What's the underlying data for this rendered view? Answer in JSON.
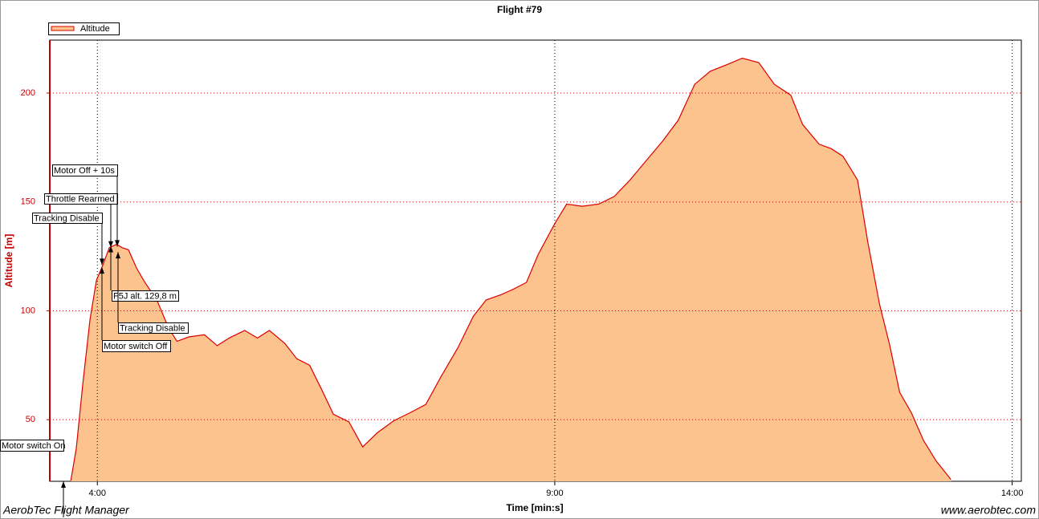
{
  "chart_data": {
    "type": "area",
    "title": "Flight #79",
    "x_label": "Time [min:s]",
    "y_label": "Altitude [m]",
    "footer_left": "AerobTec Flight Manager",
    "footer_right": "www.aerobtec.com",
    "xlim": [
      3.48,
      14.1
    ],
    "ylim": [
      21.7,
      224.3
    ],
    "xticks": [
      {
        "value": 4,
        "label": "4:00"
      },
      {
        "value": 9,
        "label": "9:00"
      },
      {
        "value": 14,
        "label": "14:00"
      }
    ],
    "yticks": [
      50,
      100,
      150,
      200
    ],
    "grid": true,
    "legend": "top-left",
    "x": [
      3.71,
      3.77,
      3.84,
      3.92,
      3.99,
      4.06,
      4.13,
      4.21,
      4.27,
      4.34,
      4.43,
      4.52,
      4.65,
      4.78,
      4.87,
      5.0,
      5.17,
      5.31,
      5.44,
      5.61,
      5.75,
      5.88,
      6.05,
      6.18,
      6.32,
      6.45,
      6.58,
      6.75,
      6.9,
      7.06,
      7.24,
      7.41,
      7.59,
      7.76,
      7.94,
      8.11,
      8.25,
      8.42,
      8.55,
      8.69,
      8.82,
      9.0,
      9.13,
      9.3,
      9.48,
      9.65,
      9.82,
      10.0,
      10.18,
      10.35,
      10.53,
      10.7,
      10.88,
      11.05,
      11.23,
      11.4,
      11.58,
      11.71,
      11.89,
      12.02,
      12.15,
      12.31,
      12.42,
      12.55,
      12.66,
      12.77,
      12.9,
      13.03,
      13.17,
      13.33
    ],
    "series": [
      {
        "name": "Altitude",
        "color": "#dd0000",
        "fill": "#fcc38e",
        "values": [
          22,
          36.8,
          66,
          96,
          114,
          121,
          129,
          130.5,
          129,
          128,
          119.5,
          113,
          105,
          92,
          86,
          88,
          89,
          84,
          87.5,
          91,
          87.5,
          91,
          85,
          78,
          75,
          64,
          52.5,
          49,
          37.5,
          44,
          49.5,
          53,
          57,
          70,
          83,
          97.5,
          105,
          107.5,
          110,
          113,
          126,
          140,
          149,
          148,
          149,
          152.5,
          160,
          169,
          178,
          187.5,
          204,
          210,
          213,
          216,
          214,
          204,
          199,
          185.5,
          176.5,
          174.5,
          171,
          160,
          132,
          103,
          84.5,
          62.5,
          53,
          40.5,
          31,
          22.5
        ]
      }
    ],
    "annotations": [
      {
        "text": "Motor switch On",
        "x": 3.63,
        "y": 21.7
      },
      {
        "text": "Tracking Disable",
        "x": 4.05,
        "y": 121
      },
      {
        "text": "Throttle Rearmed",
        "x": 4.15,
        "y": 129
      },
      {
        "text": "Motor Off + 10s",
        "x": 4.22,
        "y": 129.5
      },
      {
        "text": "F5J alt. 129,8 m",
        "x": 4.15,
        "y": 129.8
      },
      {
        "text": "Tracking Disable",
        "x": 4.23,
        "y": 127
      },
      {
        "text": "Motor switch Off",
        "x": 4.05,
        "y": 120
      }
    ]
  }
}
